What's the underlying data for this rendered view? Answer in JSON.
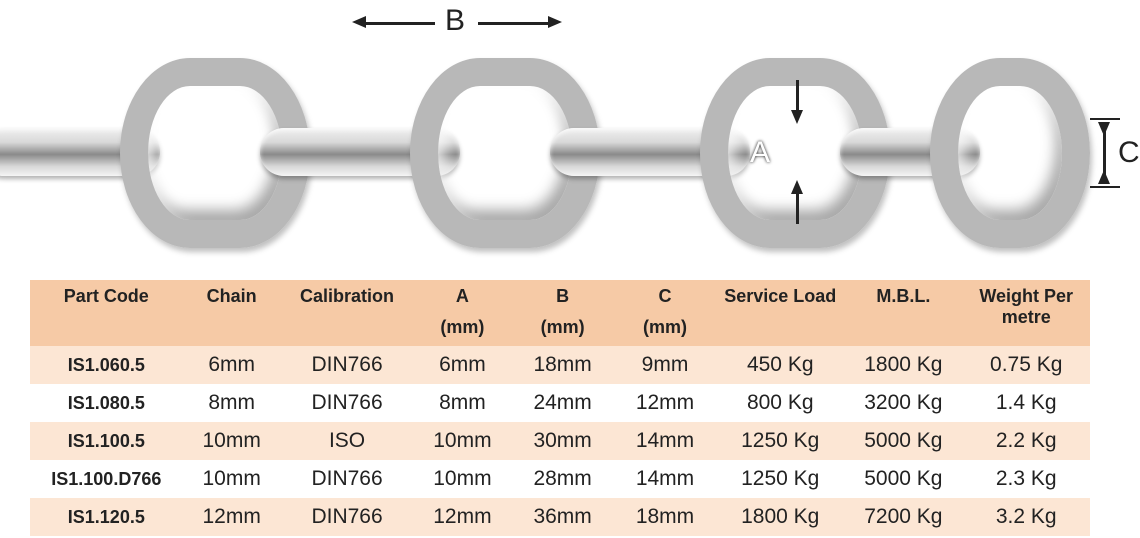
{
  "diagram": {
    "labels": {
      "A": "A",
      "B": "B",
      "C": "C"
    },
    "colors": {
      "metal_light": "#f2f2f2",
      "metal_mid": "#b8b8b8",
      "metal_dark": "#8a8a8a",
      "line": "#222222"
    }
  },
  "table": {
    "header_bg": "#f6caa6",
    "row_alt_bg": "#fce6d4",
    "row_bg": "#ffffff",
    "columns": [
      {
        "label": "Part Code",
        "sub": ""
      },
      {
        "label": "Chain",
        "sub": ""
      },
      {
        "label": "Calibration",
        "sub": ""
      },
      {
        "label": "A",
        "sub": "(mm)"
      },
      {
        "label": "B",
        "sub": "(mm)"
      },
      {
        "label": "C",
        "sub": "(mm)"
      },
      {
        "label": "Service Load",
        "sub": ""
      },
      {
        "label": "M.B.L.",
        "sub": ""
      },
      {
        "label": "Weight Per metre",
        "sub": ""
      }
    ],
    "rows": [
      [
        "IS1.060.5",
        "6mm",
        "DIN766",
        "6mm",
        "18mm",
        "9mm",
        "450 Kg",
        "1800 Kg",
        "0.75 Kg"
      ],
      [
        "IS1.080.5",
        "8mm",
        "DIN766",
        "8mm",
        "24mm",
        "12mm",
        "800 Kg",
        "3200 Kg",
        "1.4 Kg"
      ],
      [
        "IS1.100.5",
        "10mm",
        "ISO",
        "10mm",
        "30mm",
        "14mm",
        "1250 Kg",
        "5000 Kg",
        "2.2 Kg"
      ],
      [
        "IS1.100.D766",
        "10mm",
        "DIN766",
        "10mm",
        "28mm",
        "14mm",
        "1250 Kg",
        "5000 Kg",
        "2.3 Kg"
      ],
      [
        "IS1.120.5",
        "12mm",
        "DIN766",
        "12mm",
        "36mm",
        "18mm",
        "1800 Kg",
        "7200 Kg",
        "3.2 Kg"
      ]
    ],
    "row_styles": [
      "peach",
      "white",
      "peach",
      "white",
      "peach"
    ]
  }
}
